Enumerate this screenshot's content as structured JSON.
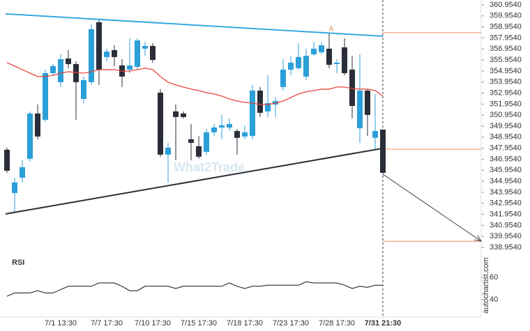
{
  "chart_data": {
    "type": "candlestick",
    "categories": [
      null,
      null,
      null,
      null,
      null,
      null,
      null,
      "7/1 13:30",
      null,
      null,
      null,
      null,
      null,
      "7/7 17:30",
      null,
      null,
      null,
      null,
      null,
      "7/10 17:30",
      null,
      null,
      null,
      null,
      null,
      "7/15 17:30",
      null,
      null,
      null,
      null,
      null,
      "7/18 17:30",
      null,
      null,
      null,
      null,
      null,
      "7/23 17:30",
      null,
      null,
      null,
      null,
      null,
      "7/28 17:30",
      null,
      null,
      null,
      null,
      null,
      "7/31 21:30"
    ],
    "open": [
      347.81,
      343.89,
      345.28,
      346.99,
      351.1,
      350.53,
      354.76,
      353.94,
      356.09,
      355.58,
      352.42,
      353.94,
      359.38,
      356.22,
      356.85,
      355.46,
      355.08,
      355.33,
      356.98,
      357.23,
      352.99,
      347.37,
      351.29,
      351.1,
      348.76,
      348.13,
      347.62,
      349.39,
      349.83,
      349.83,
      349.51,
      349.01,
      349.07,
      353.18,
      351.29,
      351.92,
      353.5,
      355.08,
      355.21,
      354.45,
      356.47,
      356.66,
      356.98,
      355.58,
      357.1,
      355.08,
      349.76,
      353.18,
      348.89,
      349.64
    ],
    "high": [
      348.0,
      345.28,
      346.86,
      351.29,
      351.92,
      355.08,
      355.6,
      356.47,
      356.85,
      355.84,
      354.45,
      359.19,
      359.63,
      356.98,
      357.29,
      356.03,
      357.92,
      357.92,
      357.61,
      357.48,
      353.31,
      348.44,
      351.92,
      351.29,
      350.15,
      349.07,
      349.7,
      350.15,
      350.97,
      350.66,
      349.7,
      350.02,
      353.69,
      353.5,
      354.57,
      352.55,
      356.03,
      356.34,
      357.48,
      356.98,
      357.61,
      357.61,
      358.37,
      356.03,
      357.92,
      356.34,
      356.47,
      353.31,
      352.87,
      349.64
    ],
    "low": [
      345.72,
      342.12,
      344.84,
      346.73,
      348.76,
      350.34,
      354.5,
      353.5,
      355.21,
      350.53,
      352.04,
      353.69,
      353.69,
      355.84,
      355.4,
      353.5,
      354.76,
      355.08,
      356.34,
      355.71,
      347.18,
      344.84,
      346.86,
      350.66,
      346.86,
      346.99,
      347.37,
      349.07,
      348.76,
      349.51,
      347.37,
      348.76,
      348.76,
      350.78,
      350.78,
      350.78,
      353.18,
      354.57,
      355.08,
      354.13,
      356.34,
      356.47,
      355.21,
      354.76,
      354.57,
      350.66,
      348.44,
      349.07,
      347.81,
      345.59
    ],
    "close": [
      345.91,
      344.84,
      346.23,
      351.1,
      349.01,
      354.76,
      355.4,
      356.03,
      355.58,
      353.94,
      354.13,
      358.75,
      355.08,
      356.72,
      356.22,
      354.45,
      355.46,
      357.73,
      357.23,
      355.96,
      347.37,
      348.0,
      350.78,
      350.78,
      348.44,
      347.18,
      349.39,
      349.83,
      350.02,
      350.15,
      348.89,
      349.39,
      353.18,
      351.16,
      352.04,
      352.23,
      355.08,
      355.71,
      356.22,
      356.34,
      356.98,
      357.29,
      355.52,
      355.71,
      354.76,
      351.79,
      353.18,
      350.97,
      349.51,
      345.72
    ],
    "moving_average": {
      "color": "#e8453c",
      "values": [
        355.71,
        355.4,
        355.08,
        354.76,
        354.45,
        354.45,
        354.57,
        354.76,
        354.89,
        354.83,
        354.76,
        354.89,
        355.08,
        355.08,
        355.08,
        354.95,
        354.95,
        355.08,
        355.21,
        355.08,
        354.45,
        353.94,
        353.69,
        353.5,
        353.31,
        353.18,
        352.99,
        352.87,
        352.68,
        352.42,
        352.23,
        352.11,
        352.04,
        351.92,
        351.92,
        352.04,
        352.23,
        352.55,
        352.87,
        353.06,
        353.18,
        353.31,
        353.31,
        353.5,
        353.5,
        353.37,
        353.31,
        353.31,
        353.18,
        352.68
      ]
    },
    "up_color": "#2b9fd8",
    "down_color": "#2a2e39",
    "resistance": {
      "color": "#36a9e1",
      "values": [
        360.14,
        358.11
      ]
    },
    "support": {
      "color": "#2a2e39",
      "values": [
        341.99,
        347.94
      ]
    },
    "levels": {
      "color": "#ec8b5e",
      "values": [
        358.43,
        347.87,
        339.51
      ]
    },
    "forecast": {
      "from": 345.59,
      "to": 339.51
    },
    "annotation": "A",
    "watermark": "What2Trade",
    "source": "autochartist.com",
    "ylim": [
      338.954,
      360.954
    ],
    "yticks": [
      {
        "value": 360.954,
        "label": "360.9540"
      },
      {
        "value": 359.954,
        "label": "359.9540"
      },
      {
        "value": 358.954,
        "label": "358.9540"
      },
      {
        "value": 357.954,
        "label": "357.9540"
      },
      {
        "value": 356.954,
        "label": "356.9540"
      },
      {
        "value": 355.954,
        "label": "355.9540"
      },
      {
        "value": 354.954,
        "label": "354.9540"
      },
      {
        "value": 353.954,
        "label": "353.9540"
      },
      {
        "value": 352.954,
        "label": "352.9540"
      },
      {
        "value": 351.954,
        "label": "351.9540"
      },
      {
        "value": 350.954,
        "label": "350.9540"
      },
      {
        "value": 349.954,
        "label": "349.9540"
      },
      {
        "value": 348.954,
        "label": "348.9540"
      },
      {
        "value": 347.954,
        "label": "347.9540"
      },
      {
        "value": 346.954,
        "label": "346.9540"
      },
      {
        "value": 345.954,
        "label": "345.9540"
      },
      {
        "value": 344.954,
        "label": "344.9540"
      },
      {
        "value": 343.954,
        "label": "343.9540"
      },
      {
        "value": 342.954,
        "label": "342.9540"
      },
      {
        "value": 341.954,
        "label": "341.9540"
      },
      {
        "value": 340.954,
        "label": "340.9540"
      },
      {
        "value": 339.954,
        "label": "339.9540"
      },
      {
        "value": 338.954,
        "label": "338.9540"
      }
    ],
    "rsi": {
      "title": "RSI",
      "color": "#111111",
      "ylim": [
        25,
        80
      ],
      "yticks": [
        60,
        40
      ],
      "values": [
        43,
        46,
        46,
        46,
        48,
        46,
        46,
        49,
        52,
        52,
        52,
        52,
        55,
        55,
        55,
        52,
        48,
        48,
        52,
        52,
        52,
        52,
        50,
        52,
        52,
        52,
        52,
        52,
        52,
        55,
        52,
        50,
        52,
        52,
        53,
        53,
        53,
        53,
        53,
        56,
        55,
        55,
        55,
        55,
        53,
        50,
        52,
        51,
        53,
        53
      ]
    }
  }
}
